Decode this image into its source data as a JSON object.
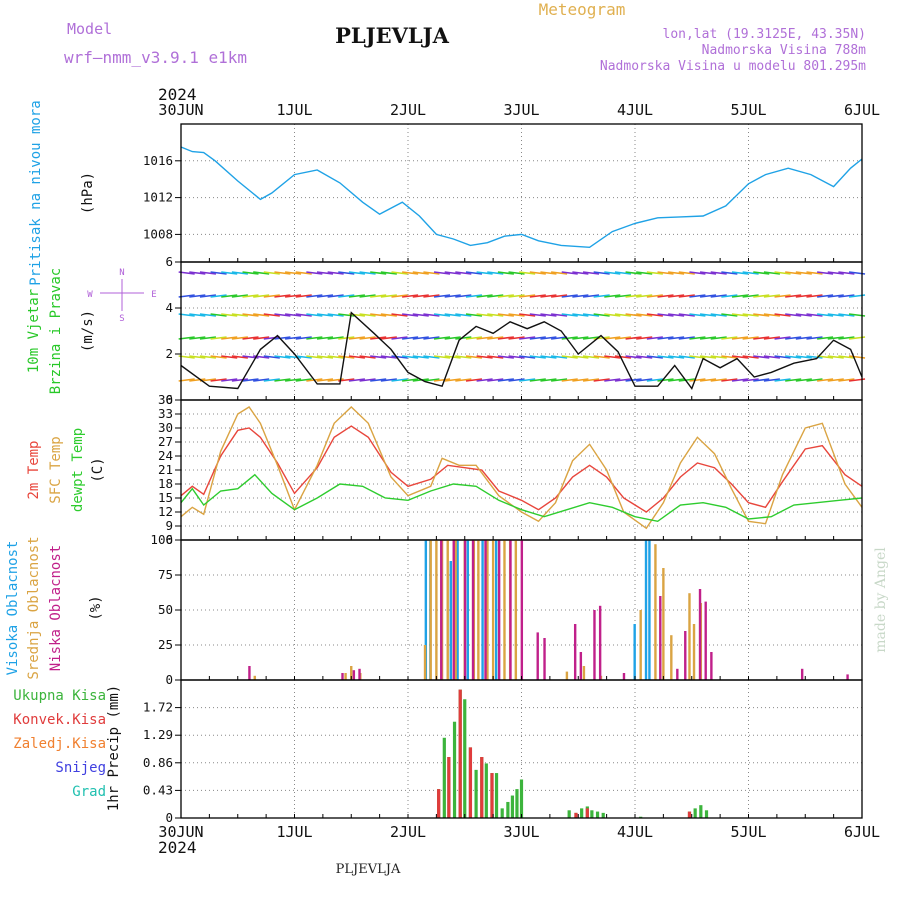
{
  "header": {
    "model_label": "Model",
    "model_name": "wrf—nmm_v3.9.1 e1km",
    "location_title": "PLJEVLJA",
    "meteogram_label": "Meteogram",
    "coords": "lon,lat (19.3125E, 43.35N)",
    "elevation": "Nadmorska Visina 788m",
    "model_elevation": "Nadmorska Visina u modelu 801.295m",
    "year_top": "2024",
    "year_bottom": "2024",
    "footer_location": "PLJEVLJA",
    "watermark": "made by Angel"
  },
  "colors": {
    "pressure": "#1fa2e6",
    "temp2m": "#e8463c",
    "sfc_temp": "#daa443",
    "dewpoint": "#2ecc2e",
    "wind_title": "#28c828",
    "wind_axis": "#b060d8",
    "cloud_high": "#1fa2e6",
    "cloud_mid": "#daa443",
    "cloud_low": "#c0208a",
    "precip_total": "#3cb43c",
    "precip_conv": "#e03c3c",
    "precip_frz": "#f08030",
    "precip_snow": "#4040e0",
    "precip_grad": "#20c0b0",
    "header_purple": "#b070d8",
    "header_gold": "#e0b050"
  },
  "time_axis": {
    "ticks": [
      "30JUN",
      "1JUL",
      "2JUL",
      "3JUL",
      "4JUL",
      "5JUL",
      "6JUL"
    ],
    "range_days": [
      0,
      6
    ]
  },
  "chart_data": [
    {
      "type": "line",
      "panel": "pressure",
      "ylabel": [
        "Pritisak na nivou mora",
        "(hPa)"
      ],
      "ylim": [
        1005,
        1020
      ],
      "yticks": [
        1008,
        1012,
        1016
      ],
      "grid": true,
      "series": [
        {
          "name": "Pritisak na nivou mora",
          "x": [
            0,
            0.1,
            0.2,
            0.3,
            0.5,
            0.7,
            0.8,
            1.0,
            1.2,
            1.4,
            1.6,
            1.75,
            1.95,
            2.1,
            2.25,
            2.4,
            2.55,
            2.7,
            2.85,
            3.0,
            3.15,
            3.35,
            3.6,
            3.8,
            4.0,
            4.2,
            4.4,
            4.6,
            4.8,
            5.0,
            5.15,
            5.35,
            5.55,
            5.75,
            5.9,
            6.0
          ],
          "y": [
            1017.5,
            1017.0,
            1016.9,
            1016.0,
            1013.8,
            1011.8,
            1012.5,
            1014.5,
            1015.0,
            1013.6,
            1011.5,
            1010.2,
            1011.5,
            1010.0,
            1008.0,
            1007.5,
            1006.8,
            1007.1,
            1007.8,
            1008.0,
            1007.3,
            1006.8,
            1006.6,
            1008.3,
            1009.2,
            1009.8,
            1009.9,
            1010.0,
            1011.1,
            1013.5,
            1014.5,
            1015.2,
            1014.5,
            1013.2,
            1015.2,
            1016.2
          ]
        }
      ]
    },
    {
      "type": "line",
      "panel": "wind",
      "ylabel": [
        "10m Vjetar",
        "Brzina i Pravac",
        "(m/s)"
      ],
      "compass": {
        "north": "N",
        "east": "E",
        "south": "S",
        "west": "W"
      },
      "ylim": [
        0,
        6
      ],
      "yticks": [
        0,
        2,
        4,
        6
      ],
      "grid": true,
      "series": [
        {
          "name": "wind speed",
          "x": [
            0,
            0.25,
            0.5,
            0.7,
            0.85,
            1.0,
            1.2,
            1.4,
            1.5,
            1.7,
            1.85,
            2.0,
            2.15,
            2.3,
            2.45,
            2.6,
            2.75,
            2.9,
            3.05,
            3.2,
            3.35,
            3.5,
            3.7,
            3.85,
            4.0,
            4.2,
            4.35,
            4.5,
            4.6,
            4.75,
            4.9,
            5.05,
            5.2,
            5.4,
            5.6,
            5.75,
            5.9,
            6.0
          ],
          "y": [
            1.5,
            0.6,
            0.5,
            2.2,
            2.8,
            2.0,
            0.7,
            0.7,
            3.8,
            2.9,
            2.2,
            1.2,
            0.8,
            0.6,
            2.6,
            3.2,
            2.9,
            3.4,
            3.1,
            3.4,
            3.0,
            2.0,
            2.8,
            2.1,
            0.6,
            0.6,
            1.5,
            0.5,
            1.8,
            1.4,
            1.8,
            1.0,
            1.2,
            1.6,
            1.8,
            2.6,
            2.2,
            1.0
          ]
        }
      ]
    },
    {
      "type": "line",
      "panel": "temperature",
      "ylabel": [
        "2m Temp",
        "SFC Temp",
        "dewpt Temp",
        "(C)"
      ],
      "ylim": [
        6,
        36
      ],
      "yticks": [
        6,
        9,
        12,
        15,
        18,
        21,
        24,
        27,
        30,
        33,
        36
      ],
      "grid": true,
      "series": [
        {
          "name": "2m Temp",
          "x": [
            0,
            0.1,
            0.2,
            0.35,
            0.5,
            0.6,
            0.7,
            0.85,
            1.0,
            1.2,
            1.35,
            1.5,
            1.65,
            1.85,
            2.0,
            2.2,
            2.35,
            2.5,
            2.65,
            2.8,
            3.0,
            3.15,
            3.3,
            3.45,
            3.6,
            3.75,
            3.9,
            4.1,
            4.25,
            4.4,
            4.55,
            4.7,
            4.85,
            5.0,
            5.15,
            5.3,
            5.5,
            5.65,
            5.85,
            6.0
          ],
          "y": [
            15.5,
            17.5,
            15.8,
            24.0,
            29.5,
            30.0,
            28.0,
            22.5,
            16.0,
            21.5,
            28.0,
            30.4,
            28.0,
            20.5,
            17.5,
            19.0,
            22.0,
            21.5,
            21.0,
            16.5,
            14.5,
            12.5,
            15.0,
            19.5,
            22.0,
            19.5,
            15.0,
            12.0,
            15.0,
            19.5,
            22.5,
            21.5,
            18.0,
            14.0,
            13.0,
            18.5,
            25.5,
            26.2,
            20.0,
            17.5
          ]
        },
        {
          "name": "SFC Temp",
          "x": [
            0,
            0.1,
            0.2,
            0.35,
            0.5,
            0.6,
            0.7,
            0.85,
            1.0,
            1.2,
            1.35,
            1.5,
            1.65,
            1.85,
            2.0,
            2.2,
            2.3,
            2.45,
            2.6,
            2.8,
            3.0,
            3.15,
            3.3,
            3.45,
            3.6,
            3.75,
            3.9,
            4.1,
            4.25,
            4.4,
            4.55,
            4.7,
            4.85,
            5.0,
            5.15,
            5.3,
            5.5,
            5.65,
            5.85,
            6.0
          ],
          "y": [
            11.0,
            13.0,
            11.5,
            25.0,
            33.0,
            34.5,
            31.0,
            22.0,
            12.5,
            22.0,
            31.0,
            34.5,
            31.0,
            19.5,
            15.5,
            17.5,
            23.5,
            22.0,
            22.0,
            15.5,
            12.0,
            10.0,
            14.0,
            23.0,
            26.5,
            21.0,
            12.0,
            8.5,
            14.0,
            22.5,
            28.0,
            24.5,
            17.0,
            10.0,
            9.5,
            20.0,
            30.0,
            31.0,
            18.0,
            13.0
          ]
        },
        {
          "name": "dewpt Temp",
          "x": [
            0,
            0.1,
            0.2,
            0.35,
            0.5,
            0.65,
            0.8,
            1.0,
            1.2,
            1.4,
            1.6,
            1.8,
            2.0,
            2.2,
            2.4,
            2.6,
            2.8,
            3.0,
            3.2,
            3.4,
            3.6,
            3.8,
            4.0,
            4.2,
            4.4,
            4.6,
            4.8,
            5.0,
            5.2,
            5.4,
            5.6,
            5.8,
            6.0
          ],
          "y": [
            14.0,
            17.0,
            13.5,
            16.5,
            17.0,
            20.0,
            16.0,
            12.5,
            15.0,
            18.0,
            17.5,
            15.0,
            14.5,
            16.5,
            18.0,
            17.5,
            14.5,
            12.5,
            11.0,
            12.5,
            14.0,
            13.0,
            11.0,
            10.0,
            13.5,
            14.0,
            13.0,
            10.5,
            11.0,
            13.5,
            14.0,
            14.5,
            15.0
          ]
        }
      ]
    },
    {
      "type": "bar",
      "panel": "cloud",
      "ylabel": [
        "Visoka Oblacnost",
        "Srednja Oblacnost",
        "Niska Oblacnost",
        "(%)"
      ],
      "ylim": [
        0,
        100
      ],
      "yticks": [
        0,
        25,
        50,
        75,
        100
      ],
      "grid": true,
      "series": [
        {
          "name": "Visoka Oblacnost",
          "x": [
            2.18,
            2.22,
            2.32,
            2.4,
            2.46,
            2.55,
            2.68,
            2.8,
            4.02,
            4.12,
            4.15
          ],
          "y": [
            100,
            100,
            87,
            85,
            100,
            100,
            100,
            100,
            40,
            100,
            100
          ]
        },
        {
          "name": "Srednja Oblacnost",
          "x": [
            0.65,
            1.45,
            1.5,
            1.58,
            2.15,
            2.2,
            2.25,
            2.3,
            2.35,
            2.42,
            2.5,
            2.58,
            2.62,
            2.7,
            2.75,
            2.85,
            2.9,
            2.95,
            3.4,
            3.55,
            3.7,
            4.05,
            4.18,
            4.25,
            4.32,
            4.48,
            4.52,
            4.58
          ],
          "y": [
            3,
            5,
            10,
            5,
            25,
            100,
            100,
            100,
            100,
            100,
            100,
            100,
            100,
            100,
            100,
            100,
            100,
            100,
            6,
            10,
            3,
            50,
            97,
            80,
            32,
            62,
            40,
            55
          ]
        },
        {
          "name": "Niska Oblacnost",
          "x": [
            0.58,
            1.4,
            1.5,
            1.55,
            2.27,
            2.38,
            2.48,
            2.55,
            2.66,
            2.78,
            2.88,
            2.98,
            3.12,
            3.18,
            3.45,
            3.5,
            3.62,
            3.67,
            3.88,
            4.2,
            4.35,
            4.42,
            4.55,
            4.6,
            4.65,
            5.45,
            5.85
          ],
          "y": [
            10,
            5,
            7,
            8,
            100,
            100,
            100,
            100,
            100,
            100,
            100,
            100,
            34,
            30,
            40,
            20,
            50,
            53,
            5,
            60,
            8,
            35,
            65,
            56,
            20,
            8,
            4
          ]
        }
      ]
    },
    {
      "type": "bar",
      "panel": "precip",
      "ylabel": [
        "1hr Precip (mm)"
      ],
      "legend": [
        "Ukupna Kisa",
        "Konvek.Kisa",
        "Zaledj.Kisa",
        "Snijeg",
        "Grad"
      ],
      "ylim": [
        0,
        2.15
      ],
      "yticks": [
        0,
        0.43,
        0.86,
        1.29,
        1.72
      ],
      "grid": true,
      "series": [
        {
          "name": "Ukupna Kisa",
          "x": [
            2.27,
            2.32,
            2.36,
            2.41,
            2.46,
            2.5,
            2.55,
            2.6,
            2.65,
            2.69,
            2.74,
            2.78,
            2.83,
            2.88,
            2.92,
            2.96,
            3.0,
            3.42,
            3.48,
            3.53,
            3.58,
            3.62,
            3.67,
            3.72,
            4.05,
            4.48,
            4.53,
            4.58,
            4.63
          ],
          "y": [
            0.45,
            1.25,
            0.95,
            1.5,
            2.0,
            1.85,
            1.1,
            0.75,
            0.95,
            0.85,
            0.7,
            0.7,
            0.15,
            0.25,
            0.35,
            0.45,
            0.6,
            0.12,
            0.08,
            0.15,
            0.18,
            0.12,
            0.1,
            0.08,
            0.02,
            0.1,
            0.15,
            0.2,
            0.12
          ]
        },
        {
          "name": "Konvek.Kisa",
          "x": [
            2.27,
            2.36,
            2.46,
            2.55,
            2.65,
            2.74,
            3.48,
            3.58,
            4.48
          ],
          "y": [
            0.45,
            0.95,
            2.0,
            1.1,
            0.95,
            0.7,
            0.08,
            0.15,
            0.1
          ]
        }
      ]
    }
  ]
}
